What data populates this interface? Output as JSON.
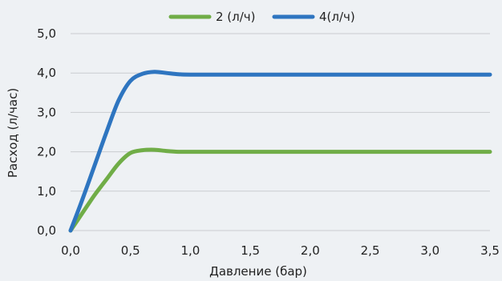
{
  "chart_data": {
    "type": "line",
    "title": "",
    "xlabel": "Давление (бар)",
    "ylabel": "Расход (л/час)",
    "xlim": [
      0,
      3.5
    ],
    "ylim": [
      0,
      5
    ],
    "x_ticks": [
      "0,0",
      "0,5",
      "1,0",
      "1,5",
      "2,0",
      "2,5",
      "3,0",
      "3,5"
    ],
    "y_ticks": [
      "0,0",
      "1,0",
      "2,0",
      "3,0",
      "4,0",
      "5,0"
    ],
    "grid": "horizontal",
    "legend_position": "top",
    "series": [
      {
        "name": "2 (л/ч)",
        "color": "#70ad47",
        "points": [
          [
            0,
            0
          ],
          [
            0.1,
            0.45
          ],
          [
            0.2,
            0.9
          ],
          [
            0.3,
            1.3
          ],
          [
            0.4,
            1.7
          ],
          [
            0.5,
            1.97
          ],
          [
            0.6,
            2.04
          ],
          [
            0.7,
            2.05
          ],
          [
            0.8,
            2.02
          ],
          [
            0.9,
            2.0
          ],
          [
            1.0,
            2.0
          ],
          [
            1.5,
            2.0
          ],
          [
            2.0,
            2.0
          ],
          [
            2.5,
            2.0
          ],
          [
            3.0,
            2.0
          ],
          [
            3.5,
            2.0
          ]
        ]
      },
      {
        "name": "4(л/ч)",
        "color": "#2e75c0",
        "points": [
          [
            0,
            0
          ],
          [
            0.1,
            0.8
          ],
          [
            0.2,
            1.65
          ],
          [
            0.3,
            2.5
          ],
          [
            0.4,
            3.3
          ],
          [
            0.5,
            3.8
          ],
          [
            0.6,
            3.98
          ],
          [
            0.7,
            4.03
          ],
          [
            0.8,
            4.0
          ],
          [
            0.9,
            3.97
          ],
          [
            1.0,
            3.96
          ],
          [
            1.5,
            3.96
          ],
          [
            2.0,
            3.96
          ],
          [
            2.5,
            3.96
          ],
          [
            3.0,
            3.96
          ],
          [
            3.5,
            3.96
          ]
        ]
      }
    ]
  }
}
